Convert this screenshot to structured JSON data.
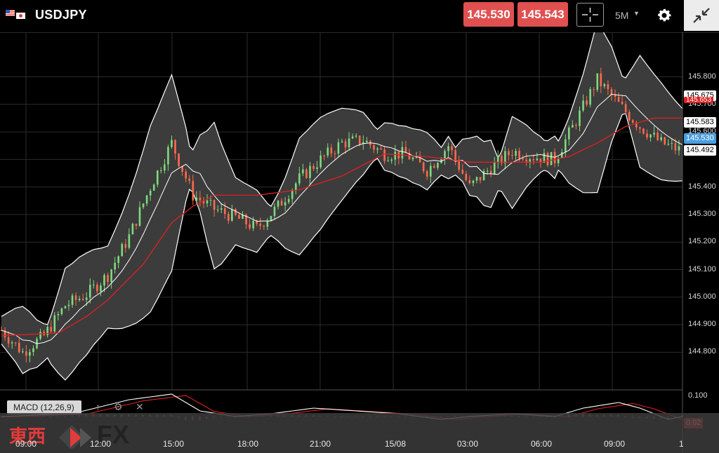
{
  "header": {
    "pair": "USDJPY",
    "sell_price": "145.530",
    "buy_price": "145.543",
    "timeframe": "5M",
    "flags": [
      "us-flag-icon",
      "jp-flag-icon"
    ]
  },
  "axis": {
    "price_labels": [
      "145.800",
      "145.700",
      "145.600",
      "145.400",
      "145.300",
      "145.200",
      "145.100",
      "145.000",
      "144.900",
      "144.800"
    ],
    "macd_labels": [
      "0.100",
      "0.02"
    ],
    "time_labels": [
      "09:00",
      "12:00",
      "15:00",
      "18:00",
      "21:00",
      "15/08",
      "03:00",
      "06:00",
      "09:00",
      "1"
    ]
  },
  "tags": {
    "upper_band": "145.675",
    "red_line": "145.653",
    "mid_band": "145.583",
    "last": "145.530",
    "lower_band": "145.492"
  },
  "macd": {
    "label": "MACD (12,26,9)"
  },
  "logo": {
    "text": "東西",
    "fx": "FX"
  },
  "colors": {
    "up": "#7fd97f",
    "down": "#ff6a4d",
    "band": "#ffffff",
    "ma": "#e02020",
    "price_button": "#e05050",
    "last_tag": "#4a9ee0"
  },
  "chart_data": {
    "type": "candlestick",
    "instrument": "USDJPY",
    "ylim": [
      144.75,
      145.87
    ],
    "close_path": [
      [
        0,
        144.88
      ],
      [
        3,
        144.8
      ],
      [
        6,
        144.86
      ],
      [
        9,
        144.97
      ],
      [
        12,
        145.01
      ],
      [
        15,
        145.08
      ],
      [
        18,
        145.22
      ],
      [
        21,
        145.4
      ],
      [
        24,
        145.56
      ],
      [
        27,
        145.37
      ],
      [
        30,
        145.32
      ],
      [
        33,
        145.29
      ],
      [
        36,
        145.25
      ],
      [
        39,
        145.33
      ],
      [
        42,
        145.43
      ],
      [
        45,
        145.5
      ],
      [
        48,
        145.56
      ],
      [
        51,
        145.57
      ],
      [
        54,
        145.52
      ],
      [
        57,
        145.52
      ],
      [
        60,
        145.46
      ],
      [
        63,
        145.55
      ],
      [
        66,
        145.4
      ],
      [
        69,
        145.47
      ],
      [
        72,
        145.53
      ],
      [
        75,
        145.51
      ],
      [
        78,
        145.5
      ],
      [
        81,
        145.64
      ],
      [
        84,
        145.79
      ],
      [
        87,
        145.7
      ],
      [
        90,
        145.62
      ],
      [
        93,
        145.56
      ],
      [
        96,
        145.53
      ]
    ],
    "ma_path": [
      [
        0,
        144.86
      ],
      [
        8,
        144.87
      ],
      [
        12,
        144.93
      ],
      [
        15,
        144.99
      ],
      [
        20,
        145.12
      ],
      [
        24,
        145.27
      ],
      [
        27,
        145.33
      ],
      [
        30,
        145.37
      ],
      [
        36,
        145.37
      ],
      [
        42,
        145.39
      ],
      [
        48,
        145.44
      ],
      [
        54,
        145.52
      ],
      [
        60,
        145.51
      ],
      [
        66,
        145.49
      ],
      [
        72,
        145.49
      ],
      [
        76,
        145.49
      ],
      [
        80,
        145.51
      ],
      [
        84,
        145.56
      ],
      [
        88,
        145.62
      ],
      [
        92,
        145.65
      ],
      [
        96,
        145.65
      ]
    ],
    "macd_path": [
      [
        0,
        0.02
      ],
      [
        10,
        0.03
      ],
      [
        18,
        0.08
      ],
      [
        24,
        0.1
      ],
      [
        28,
        0.04
      ],
      [
        33,
        0.02
      ],
      [
        38,
        0.03
      ],
      [
        44,
        0.05
      ],
      [
        50,
        0.04
      ],
      [
        56,
        0.03
      ],
      [
        62,
        0.01
      ],
      [
        66,
        0.02
      ],
      [
        72,
        0.03
      ],
      [
        78,
        0.02
      ],
      [
        82,
        0.05
      ],
      [
        87,
        0.07
      ],
      [
        90,
        0.05
      ],
      [
        94,
        0.01
      ],
      [
        96,
        0.02
      ]
    ]
  }
}
